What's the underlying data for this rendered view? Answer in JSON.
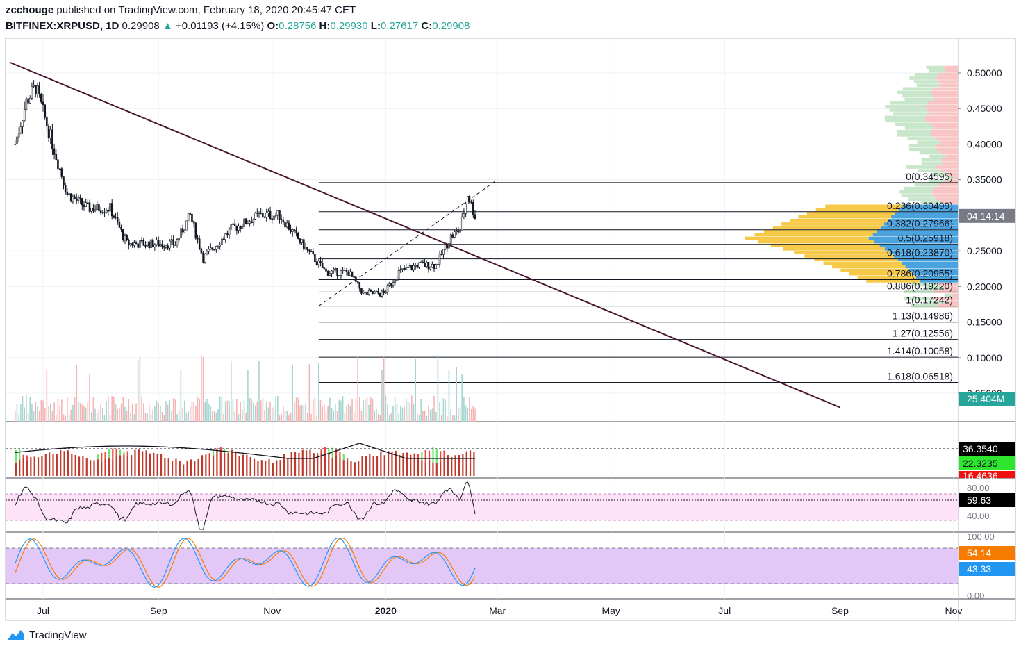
{
  "header": {
    "author": "zcchouge",
    "published_text": "published on TradingView.com, February 18, 2020 20:45:47 CET",
    "symbol": "BITFINEX:XRPUSD, 1D",
    "last": "0.29908",
    "change": "+0.01193 (+4.15%)",
    "open_label": "O:",
    "open": "0.28756",
    "high_label": "H:",
    "high": "0.29930",
    "low_label": "L:",
    "low": "0.27617",
    "close_label": "C:",
    "close": "0.29908"
  },
  "footer": {
    "brand": "TradingView"
  },
  "colors": {
    "up": "#26a69a",
    "down": "#ef5350",
    "trendline": "#4a1630",
    "vp_yellow": "#f7c948",
    "vp_blue": "#4aa3df",
    "vp_green": "#c8e6c9",
    "vp_red": "#f8c4c4",
    "rsi_fill": "#fde2f8",
    "stoch_fill": "#e3c8f7",
    "stoch_k": "#2196f3",
    "stoch_d": "#f57c00"
  },
  "chart_data": {
    "type": "candlestick",
    "price_axis": {
      "min": 0.03,
      "max": 0.53,
      "ticks": [
        "0.50000",
        "0.45000",
        "0.40000",
        "0.35000",
        "0.25000",
        "0.20000",
        "0.15000",
        "0.10000",
        "0.05000"
      ]
    },
    "time_axis": {
      "labels": [
        "Jul",
        "Sep",
        "Nov",
        "2020",
        "Mar",
        "May",
        "Jul",
        "Sep",
        "Nov"
      ]
    },
    "price_path": [
      {
        "t": "2019-06-16",
        "p": 0.4
      },
      {
        "t": "2019-06-22",
        "p": 0.46
      },
      {
        "t": "2019-06-27",
        "p": 0.48
      },
      {
        "t": "2019-07-05",
        "p": 0.41
      },
      {
        "t": "2019-07-14",
        "p": 0.33
      },
      {
        "t": "2019-07-25",
        "p": 0.31
      },
      {
        "t": "2019-08-06",
        "p": 0.31
      },
      {
        "t": "2019-08-15",
        "p": 0.26
      },
      {
        "t": "2019-08-30",
        "p": 0.26
      },
      {
        "t": "2019-09-10",
        "p": 0.26
      },
      {
        "t": "2019-09-18",
        "p": 0.3
      },
      {
        "t": "2019-09-25",
        "p": 0.24
      },
      {
        "t": "2019-10-10",
        "p": 0.28
      },
      {
        "t": "2019-10-25",
        "p": 0.3
      },
      {
        "t": "2019-11-05",
        "p": 0.3
      },
      {
        "t": "2019-11-20",
        "p": 0.25
      },
      {
        "t": "2019-11-30",
        "p": 0.22
      },
      {
        "t": "2019-12-12",
        "p": 0.22
      },
      {
        "t": "2019-12-20",
        "p": 0.19
      },
      {
        "t": "2019-12-31",
        "p": 0.19
      },
      {
        "t": "2020-01-08",
        "p": 0.22
      },
      {
        "t": "2020-01-18",
        "p": 0.23
      },
      {
        "t": "2020-01-28",
        "p": 0.23
      },
      {
        "t": "2020-02-05",
        "p": 0.27
      },
      {
        "t": "2020-02-10",
        "p": 0.28
      },
      {
        "t": "2020-02-14",
        "p": 0.33
      },
      {
        "t": "2020-02-18",
        "p": 0.29908
      }
    ],
    "price_label": "04:14:14",
    "fib_levels": [
      {
        "label": "0(0.34595)",
        "value": 0.34595
      },
      {
        "label": "0.236(0.30499)",
        "value": 0.30499
      },
      {
        "label": "0.382(0.27966)",
        "value": 0.27966
      },
      {
        "label": "0.5(0.25918)",
        "value": 0.25918
      },
      {
        "label": "0.618(0.23870)",
        "value": 0.2387
      },
      {
        "label": "0.786(0.20955)",
        "value": 0.20955
      },
      {
        "label": "0.886(0.19220)",
        "value": 0.1922
      },
      {
        "label": "1(0.17242)",
        "value": 0.17242
      },
      {
        "label": "1.13(0.14986)",
        "value": 0.14986
      },
      {
        "label": "1.27(0.12556)",
        "value": 0.12556
      },
      {
        "label": "1.414(0.10058)",
        "value": 0.10058
      },
      {
        "label": "1.618(0.06518)",
        "value": 0.06518
      }
    ],
    "fib_start": "2019-11-26",
    "trendline": {
      "start": {
        "t": "2019-06-13",
        "p": 0.515
      },
      "end": {
        "t": "2020-09-01",
        "p": 0.03
      }
    },
    "dashed_line": {
      "start": {
        "t": "2019-11-26",
        "p": 0.17242
      },
      "end": {
        "t": "2020-03-01",
        "p": 0.35
      }
    },
    "volume_label": "25.404M",
    "dmi": {
      "labels": [
        "36.3540",
        "22.3235",
        "16.4636"
      ]
    },
    "rsi": {
      "levels": [
        "80.00",
        "40.00"
      ],
      "value": "59.63"
    },
    "stoch": {
      "levels": [
        "100.00",
        "0.00"
      ],
      "k": "54.14",
      "d": "43.33"
    }
  }
}
